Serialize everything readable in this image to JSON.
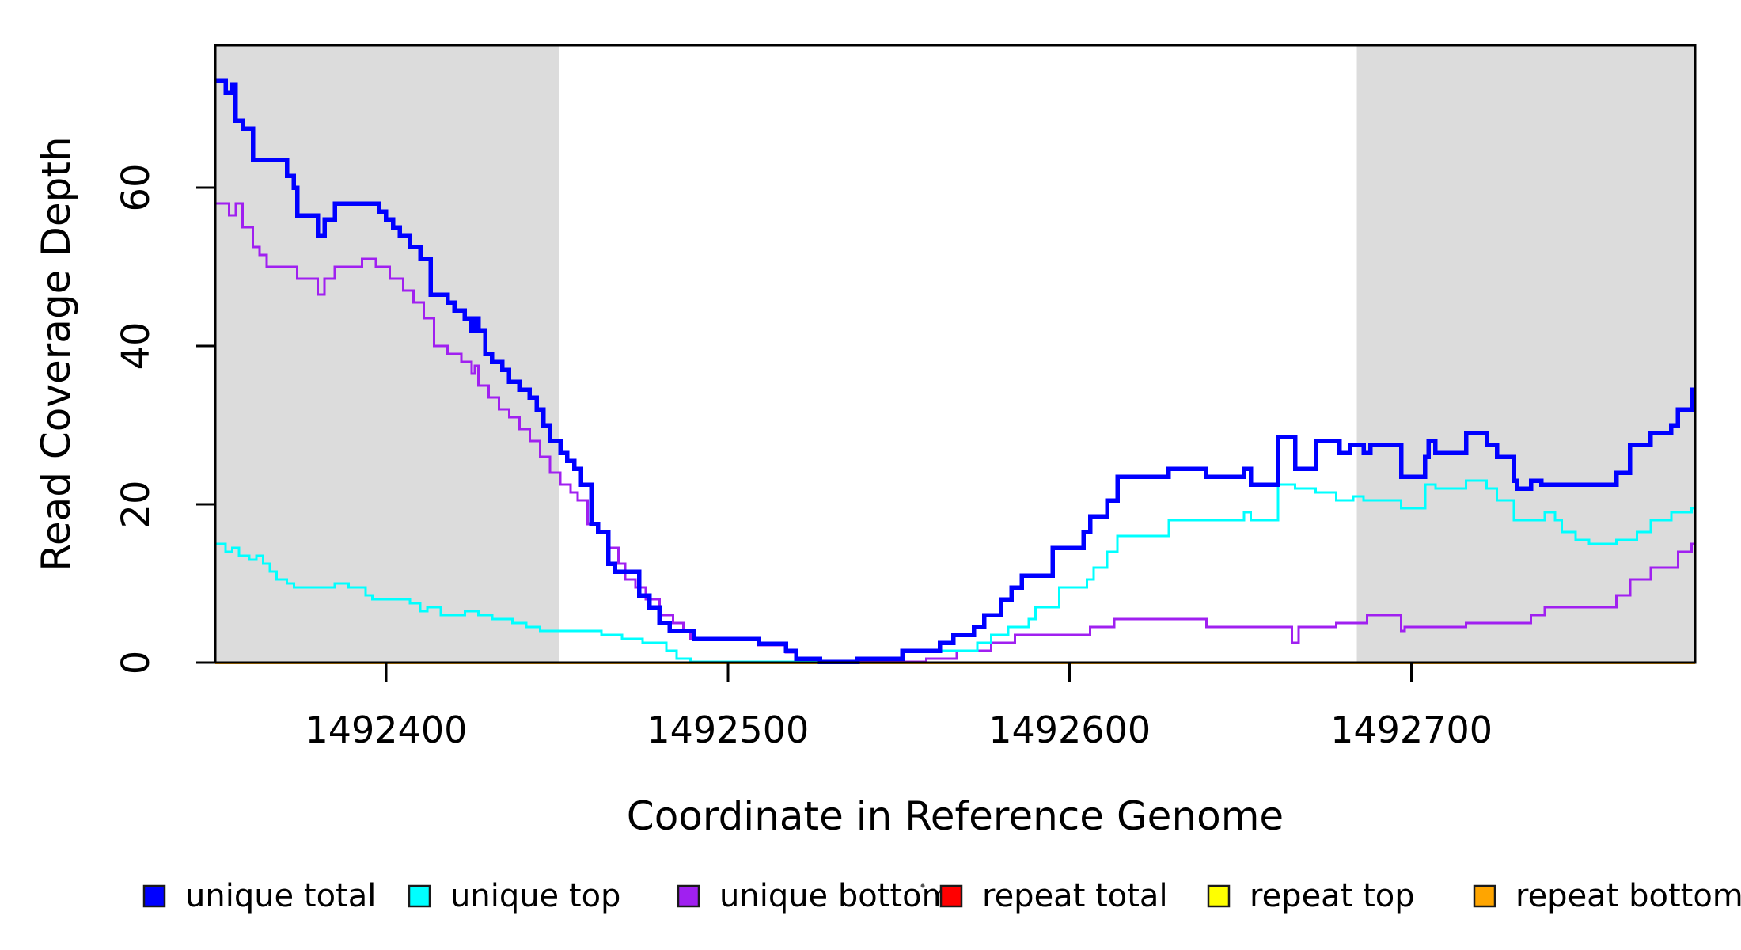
{
  "chart_data": {
    "type": "line",
    "subtype": "step",
    "title": "",
    "xlabel": "Coordinate in Reference Genome",
    "ylabel": "Read Coverage Depth",
    "xlim": [
      1492350,
      1492783
    ],
    "ylim": [
      0,
      78
    ],
    "x_ticks": [
      1492400,
      1492500,
      1492600,
      1492700
    ],
    "y_ticks": [
      0,
      20,
      40,
      60
    ],
    "grid": false,
    "legend_position": "bottom",
    "background_color": "#FFFFFF",
    "plot_border_color": "#000000",
    "shaded_regions": [
      {
        "x0": 1492350,
        "x1": 1492450.5,
        "color": "#DCDCDC"
      },
      {
        "x0": 1492684,
        "x1": 1492783,
        "color": "#DCDCDC"
      }
    ],
    "series": [
      {
        "name": "unique total",
        "color": "#0000FF",
        "stroke_width": 5.5,
        "points": [
          [
            1492350,
            73.5
          ],
          [
            1492353,
            72
          ],
          [
            1492355,
            73
          ],
          [
            1492356,
            68.5
          ],
          [
            1492358,
            67.5
          ],
          [
            1492361,
            63.5
          ],
          [
            1492371,
            61.5
          ],
          [
            1492373,
            60
          ],
          [
            1492374,
            56.5
          ],
          [
            1492380,
            54
          ],
          [
            1492382,
            56
          ],
          [
            1492385,
            58
          ],
          [
            1492398,
            57
          ],
          [
            1492400,
            56
          ],
          [
            1492402,
            55
          ],
          [
            1492404,
            54
          ],
          [
            1492407,
            52.5
          ],
          [
            1492410,
            51
          ],
          [
            1492413,
            46.5
          ],
          [
            1492418,
            45.5
          ],
          [
            1492420,
            44.5
          ],
          [
            1492423,
            43.5
          ],
          [
            1492425,
            42
          ],
          [
            1492426,
            43.5
          ],
          [
            1492427,
            42
          ],
          [
            1492429,
            39
          ],
          [
            1492431,
            38
          ],
          [
            1492434,
            37
          ],
          [
            1492436,
            35.5
          ],
          [
            1492439,
            34.5
          ],
          [
            1492442,
            33.5
          ],
          [
            1492444,
            32
          ],
          [
            1492446,
            30
          ],
          [
            1492448,
            28
          ],
          [
            1492451,
            26.5
          ],
          [
            1492453,
            25.5
          ],
          [
            1492455,
            24.5
          ],
          [
            1492457,
            22.5
          ],
          [
            1492460,
            17.5
          ],
          [
            1492462,
            16.5
          ],
          [
            1492465,
            12.5
          ],
          [
            1492467,
            11.5
          ],
          [
            1492474,
            8.5
          ],
          [
            1492477,
            7
          ],
          [
            1492480,
            5
          ],
          [
            1492483,
            4
          ],
          [
            1492490,
            3
          ],
          [
            1492509,
            2.4
          ],
          [
            1492517,
            1.5
          ],
          [
            1492520,
            0.5
          ],
          [
            1492527,
            0.1
          ],
          [
            1492538,
            0.5
          ],
          [
            1492551,
            1.5
          ],
          [
            1492562,
            2.5
          ],
          [
            1492566,
            3.5
          ],
          [
            1492572,
            4.5
          ],
          [
            1492575,
            6
          ],
          [
            1492580,
            8
          ],
          [
            1492583,
            9.5
          ],
          [
            1492586,
            11
          ],
          [
            1492595,
            14.5
          ],
          [
            1492604,
            16.5
          ],
          [
            1492606,
            18.5
          ],
          [
            1492611,
            20.5
          ],
          [
            1492614,
            23.5
          ],
          [
            1492629,
            24.5
          ],
          [
            1492640,
            23.5
          ],
          [
            1492651,
            24.5
          ],
          [
            1492653,
            22.5
          ],
          [
            1492661,
            28.5
          ],
          [
            1492666,
            24.5
          ],
          [
            1492672,
            28
          ],
          [
            1492679,
            26.5
          ],
          [
            1492682,
            27.5
          ],
          [
            1492686,
            26.5
          ],
          [
            1492688,
            27.5
          ],
          [
            1492697,
            23.5
          ],
          [
            1492704,
            26
          ],
          [
            1492705,
            28
          ],
          [
            1492707,
            26.5
          ],
          [
            1492716,
            29
          ],
          [
            1492722,
            27.5
          ],
          [
            1492725,
            26
          ],
          [
            1492730,
            23
          ],
          [
            1492731,
            22
          ],
          [
            1492735,
            23
          ],
          [
            1492738,
            22.5
          ],
          [
            1492760,
            24
          ],
          [
            1492764,
            27.5
          ],
          [
            1492770,
            29
          ],
          [
            1492776,
            30
          ],
          [
            1492778,
            32
          ],
          [
            1492782,
            34.5
          ]
        ]
      },
      {
        "name": "unique top",
        "color": "#00FFFF",
        "stroke_width": 3,
        "points": [
          [
            1492350,
            15
          ],
          [
            1492353,
            14
          ],
          [
            1492355,
            14.5
          ],
          [
            1492357,
            13.5
          ],
          [
            1492360,
            13
          ],
          [
            1492362,
            13.5
          ],
          [
            1492364,
            12.5
          ],
          [
            1492366,
            11.5
          ],
          [
            1492368,
            10.5
          ],
          [
            1492371,
            10
          ],
          [
            1492373,
            9.5
          ],
          [
            1492385,
            10
          ],
          [
            1492389,
            9.5
          ],
          [
            1492394,
            8.5
          ],
          [
            1492396,
            8
          ],
          [
            1492407,
            7.5
          ],
          [
            1492410,
            6.5
          ],
          [
            1492412,
            7
          ],
          [
            1492416,
            6
          ],
          [
            1492423,
            6.5
          ],
          [
            1492427,
            6
          ],
          [
            1492431,
            5.5
          ],
          [
            1492437,
            5
          ],
          [
            1492441,
            4.5
          ],
          [
            1492445,
            4
          ],
          [
            1492463,
            3.5
          ],
          [
            1492469,
            3
          ],
          [
            1492475,
            2.5
          ],
          [
            1492482,
            1.5
          ],
          [
            1492485,
            0.5
          ],
          [
            1492489,
            0.1
          ],
          [
            1492538,
            0.5
          ],
          [
            1492551,
            1.5
          ],
          [
            1492573,
            2.5
          ],
          [
            1492577,
            3.5
          ],
          [
            1492582,
            4.5
          ],
          [
            1492588,
            5.5
          ],
          [
            1492590,
            7
          ],
          [
            1492597,
            9.5
          ],
          [
            1492605,
            10.5
          ],
          [
            1492607,
            12
          ],
          [
            1492611,
            14
          ],
          [
            1492614,
            16
          ],
          [
            1492629,
            18
          ],
          [
            1492651,
            19
          ],
          [
            1492653,
            18
          ],
          [
            1492661,
            22.5
          ],
          [
            1492666,
            22
          ],
          [
            1492672,
            21.5
          ],
          [
            1492678,
            20.5
          ],
          [
            1492683,
            21
          ],
          [
            1492686,
            20.5
          ],
          [
            1492697,
            19.5
          ],
          [
            1492704,
            22.5
          ],
          [
            1492707,
            22
          ],
          [
            1492716,
            23
          ],
          [
            1492722,
            22
          ],
          [
            1492725,
            20.5
          ],
          [
            1492730,
            18
          ],
          [
            1492739,
            19
          ],
          [
            1492742,
            18
          ],
          [
            1492744,
            16.5
          ],
          [
            1492748,
            15.5
          ],
          [
            1492752,
            15
          ],
          [
            1492760,
            15.5
          ],
          [
            1492766,
            16.5
          ],
          [
            1492770,
            18
          ],
          [
            1492776,
            19
          ],
          [
            1492782,
            19.5
          ]
        ]
      },
      {
        "name": "unique bottom",
        "color": "#A020F0",
        "stroke_width": 3,
        "points": [
          [
            1492350,
            58
          ],
          [
            1492354,
            56.5
          ],
          [
            1492356,
            58
          ],
          [
            1492358,
            55
          ],
          [
            1492361,
            52.5
          ],
          [
            1492363,
            51.5
          ],
          [
            1492365,
            50
          ],
          [
            1492374,
            48.5
          ],
          [
            1492380,
            46.5
          ],
          [
            1492382,
            48.5
          ],
          [
            1492385,
            50
          ],
          [
            1492393,
            51
          ],
          [
            1492397,
            50
          ],
          [
            1492401,
            48.5
          ],
          [
            1492405,
            47
          ],
          [
            1492408,
            45.5
          ],
          [
            1492411,
            43.5
          ],
          [
            1492414,
            40
          ],
          [
            1492418,
            39
          ],
          [
            1492422,
            38
          ],
          [
            1492425,
            36.5
          ],
          [
            1492426,
            37.5
          ],
          [
            1492427,
            35
          ],
          [
            1492430,
            33.5
          ],
          [
            1492433,
            32
          ],
          [
            1492436,
            31
          ],
          [
            1492439,
            29.5
          ],
          [
            1492442,
            28
          ],
          [
            1492445,
            26
          ],
          [
            1492448,
            24
          ],
          [
            1492451,
            22.5
          ],
          [
            1492454,
            21.5
          ],
          [
            1492456,
            20.5
          ],
          [
            1492459,
            17.5
          ],
          [
            1492462,
            16.5
          ],
          [
            1492465,
            14.5
          ],
          [
            1492468,
            12.5
          ],
          [
            1492470,
            10.5
          ],
          [
            1492473,
            9.5
          ],
          [
            1492476,
            8
          ],
          [
            1492480,
            6
          ],
          [
            1492484,
            5
          ],
          [
            1492487,
            4
          ],
          [
            1492489,
            3
          ],
          [
            1492509,
            2.2
          ],
          [
            1492517,
            1.3
          ],
          [
            1492520,
            0.4
          ],
          [
            1492523,
            0.1
          ],
          [
            1492558,
            0.5
          ],
          [
            1492567,
            1.5
          ],
          [
            1492577,
            2.5
          ],
          [
            1492584,
            3.5
          ],
          [
            1492606,
            4.5
          ],
          [
            1492613,
            5.5
          ],
          [
            1492640,
            4.5
          ],
          [
            1492665,
            2.5
          ],
          [
            1492667,
            4.5
          ],
          [
            1492678,
            5
          ],
          [
            1492687,
            6
          ],
          [
            1492697,
            4
          ],
          [
            1492698,
            4.5
          ],
          [
            1492716,
            5
          ],
          [
            1492735,
            6
          ],
          [
            1492739,
            7
          ],
          [
            1492760,
            8.5
          ],
          [
            1492764,
            10.5
          ],
          [
            1492770,
            12
          ],
          [
            1492778,
            14
          ],
          [
            1492782,
            15
          ]
        ]
      },
      {
        "name": "repeat total",
        "color": "#FF0000",
        "stroke_width": 3,
        "points": [
          [
            1492350,
            0
          ]
        ]
      },
      {
        "name": "repeat top",
        "color": "#FFFF00",
        "stroke_width": 3,
        "points": [
          [
            1492350,
            0
          ]
        ]
      },
      {
        "name": "repeat bottom",
        "color": "#FFA500",
        "stroke_width": 3.5,
        "points": [
          [
            1492350,
            0
          ]
        ]
      }
    ],
    "legend": [
      {
        "label": "unique total",
        "color": "#0000FF"
      },
      {
        "label": "unique top",
        "color": "#00FFFF"
      },
      {
        "label": "unique bottom",
        "color": "#A020F0"
      },
      {
        "label": "repeat total",
        "color": "#FF0000"
      },
      {
        "label": "repeat top",
        "color": "#FFFF00"
      },
      {
        "label": "repeat bottom",
        "color": "#FFA500"
      }
    ],
    "stray_mark": {
      "present": true
    }
  }
}
